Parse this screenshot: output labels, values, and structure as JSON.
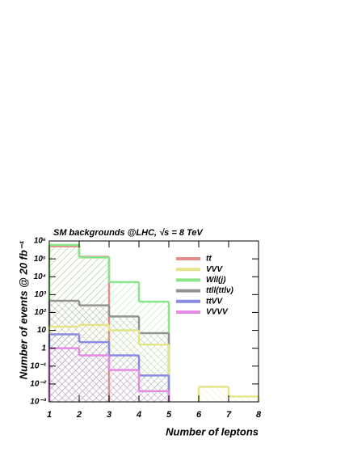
{
  "chart_data": {
    "type": "histogram",
    "title": "SM backgrounds @LHC, √s = 8 TeV",
    "x_label": "Number of leptons",
    "y_label": "Number of events @ 20 fb⁻¹",
    "bins": [
      1,
      2,
      3,
      4,
      5,
      6,
      7,
      8
    ],
    "xlim": [
      1,
      8
    ],
    "xticks": [
      1,
      2,
      3,
      4,
      5,
      6,
      7,
      8
    ],
    "log_y": true,
    "ylim": [
      0.001,
      1000000
    ],
    "yticks": [
      {
        "value": 1000000,
        "label": "10⁶"
      },
      {
        "value": 100000,
        "label": "10⁵"
      },
      {
        "value": 10000,
        "label": "10⁴"
      },
      {
        "value": 1000,
        "label": "10³"
      },
      {
        "value": 100,
        "label": "10²"
      },
      10,
      1,
      {
        "value": 0.1,
        "label": "10⁻¹"
      },
      {
        "value": 0.01,
        "label": "10⁻²"
      },
      {
        "value": 0.001,
        "label": "10⁻³"
      }
    ],
    "legend": "upper right",
    "series": [
      {
        "name": "tt",
        "color": "#e88a8a",
        "values": [
          500000,
          130000,
          null,
          null,
          null,
          null,
          null
        ]
      },
      {
        "name": "VVV",
        "color": "#e4e48a",
        "values": [
          16,
          20,
          10,
          1.6,
          null,
          0.007,
          0.002
        ]
      },
      {
        "name": "Wll(j)",
        "color": "#8ae48a",
        "values": [
          600000,
          120000,
          5000,
          400,
          null,
          null,
          null
        ]
      },
      {
        "name": "ttll(ttlν)",
        "color": "#939393",
        "values": [
          450,
          250,
          60,
          7,
          null,
          null,
          null
        ]
      },
      {
        "name": "ttVV",
        "color": "#8a8ae4",
        "values": [
          6,
          2.2,
          0.4,
          0.03,
          null,
          null,
          null
        ]
      },
      {
        "name": "VVVV",
        "color": "#e48ae4",
        "values": [
          1,
          0.4,
          0.06,
          0.004,
          null,
          null,
          null
        ]
      }
    ]
  }
}
